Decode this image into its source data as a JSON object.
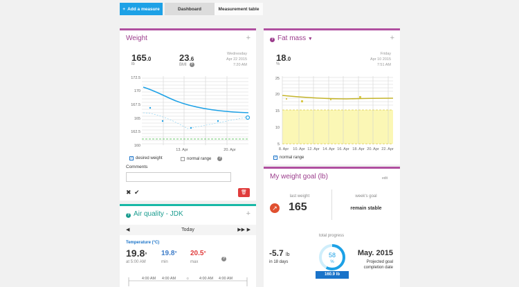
{
  "toolbar": {
    "add_label": "Add a measure",
    "add_icon": "plus-icon",
    "tabs": [
      "Dashboard",
      "Measurement table"
    ]
  },
  "weight": {
    "title": "Weight",
    "value_int": "165",
    "value_dec": ".0",
    "value_unit": "lb",
    "bmi_int": "23",
    "bmi_dec": ".6",
    "bmi_label": "BMI",
    "date_lines": [
      "Wednesday",
      "Apr 22 2015",
      "7:20 AM"
    ],
    "y_ticks": [
      "172.5",
      "170",
      "167.5",
      "165",
      "162.5",
      "160"
    ],
    "x_ticks": [
      "13. Apr",
      "20. Apr"
    ],
    "desired_label": "desired weight",
    "normal_label": "normal range",
    "comments_label": "Comments"
  },
  "fatmass": {
    "title": "Fat mass",
    "value_int": "18",
    "value_dec": ".0",
    "value_unit": "%",
    "date_lines": [
      "Friday",
      "Apr 10 2015",
      "7:51 AM"
    ],
    "y_ticks": [
      "25",
      "20",
      "15",
      "10",
      "5"
    ],
    "x_ticks": [
      "8. Apr",
      "10. Apr",
      "12. Apr",
      "14. Apr",
      "16. Apr",
      "18. Apr",
      "20. Apr",
      "22. Apr"
    ],
    "normal_label": "normal range"
  },
  "air": {
    "title": "Air quality - JDK",
    "day": "Today",
    "subtitle": "Temperature (°C)",
    "current": "19.8",
    "current_unit": "°",
    "current_time": "at 5:00 AM",
    "min": "19.8",
    "min_unit": "°",
    "min_label": "min",
    "max": "20.5",
    "max_unit": "°",
    "max_label": "max",
    "times": [
      "4:00 AM",
      "4:00 AM",
      "4:00 AM",
      "4:00 AM"
    ]
  },
  "goal": {
    "title": "My weight goal (lb)",
    "edit_label": "edit",
    "last_weight_label": "last weight",
    "last_weight": "165",
    "weeks_goal_label": "week's goal",
    "weeks_goal": "remain stable",
    "progress_label": "total progress",
    "change": "-5.7",
    "change_unit": "lb",
    "change_period": "in 18 days",
    "progress_pct": "58",
    "progress_unit": "%",
    "progress_value": 0.58,
    "target_badge": "160.9 lb",
    "projected_date": "May. 2015",
    "projected_lines": [
      "Projected goal",
      "completion date"
    ]
  }
}
